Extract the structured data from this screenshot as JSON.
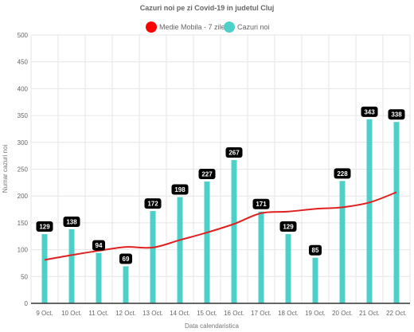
{
  "chart_data": {
    "type": "bar",
    "title": "Cazuri noi pe zi Covid-19 in judetul Cluj",
    "xlabel": "Data calendaristica",
    "ylabel": "Numar cazuri noi",
    "ylim": [
      0,
      500
    ],
    "yticks": [
      0,
      50,
      100,
      150,
      200,
      250,
      300,
      350,
      400,
      450,
      500
    ],
    "grid": true,
    "legend_position": "top",
    "categories": [
      "9 Oct.",
      "10 Oct.",
      "11 Oct.",
      "12 Oct.",
      "13 Oct.",
      "14 Oct.",
      "15 Oct.",
      "16 Oct.",
      "17 Oct.",
      "18 Oct.",
      "19 Oct.",
      "20 Oct.",
      "21 Oct.",
      "22 Oct."
    ],
    "series": [
      {
        "name": "Medie Mobila - 7 zile",
        "type": "line",
        "color": "#e02020",
        "values": [
          81,
          90,
          98,
          105,
          104,
          118,
          132,
          148,
          168,
          171,
          176,
          179,
          188,
          207
        ]
      },
      {
        "name": "Cazuri noi",
        "type": "bar",
        "color": "#4dd0c9",
        "values": [
          129,
          138,
          94,
          69,
          172,
          198,
          227,
          267,
          171,
          129,
          85,
          228,
          343,
          338
        ],
        "data_labels": [
          "129",
          "138",
          "94",
          "69",
          "172",
          "198",
          "227",
          "267",
          "171",
          "129",
          "85",
          "228",
          "343",
          "338"
        ]
      }
    ]
  }
}
